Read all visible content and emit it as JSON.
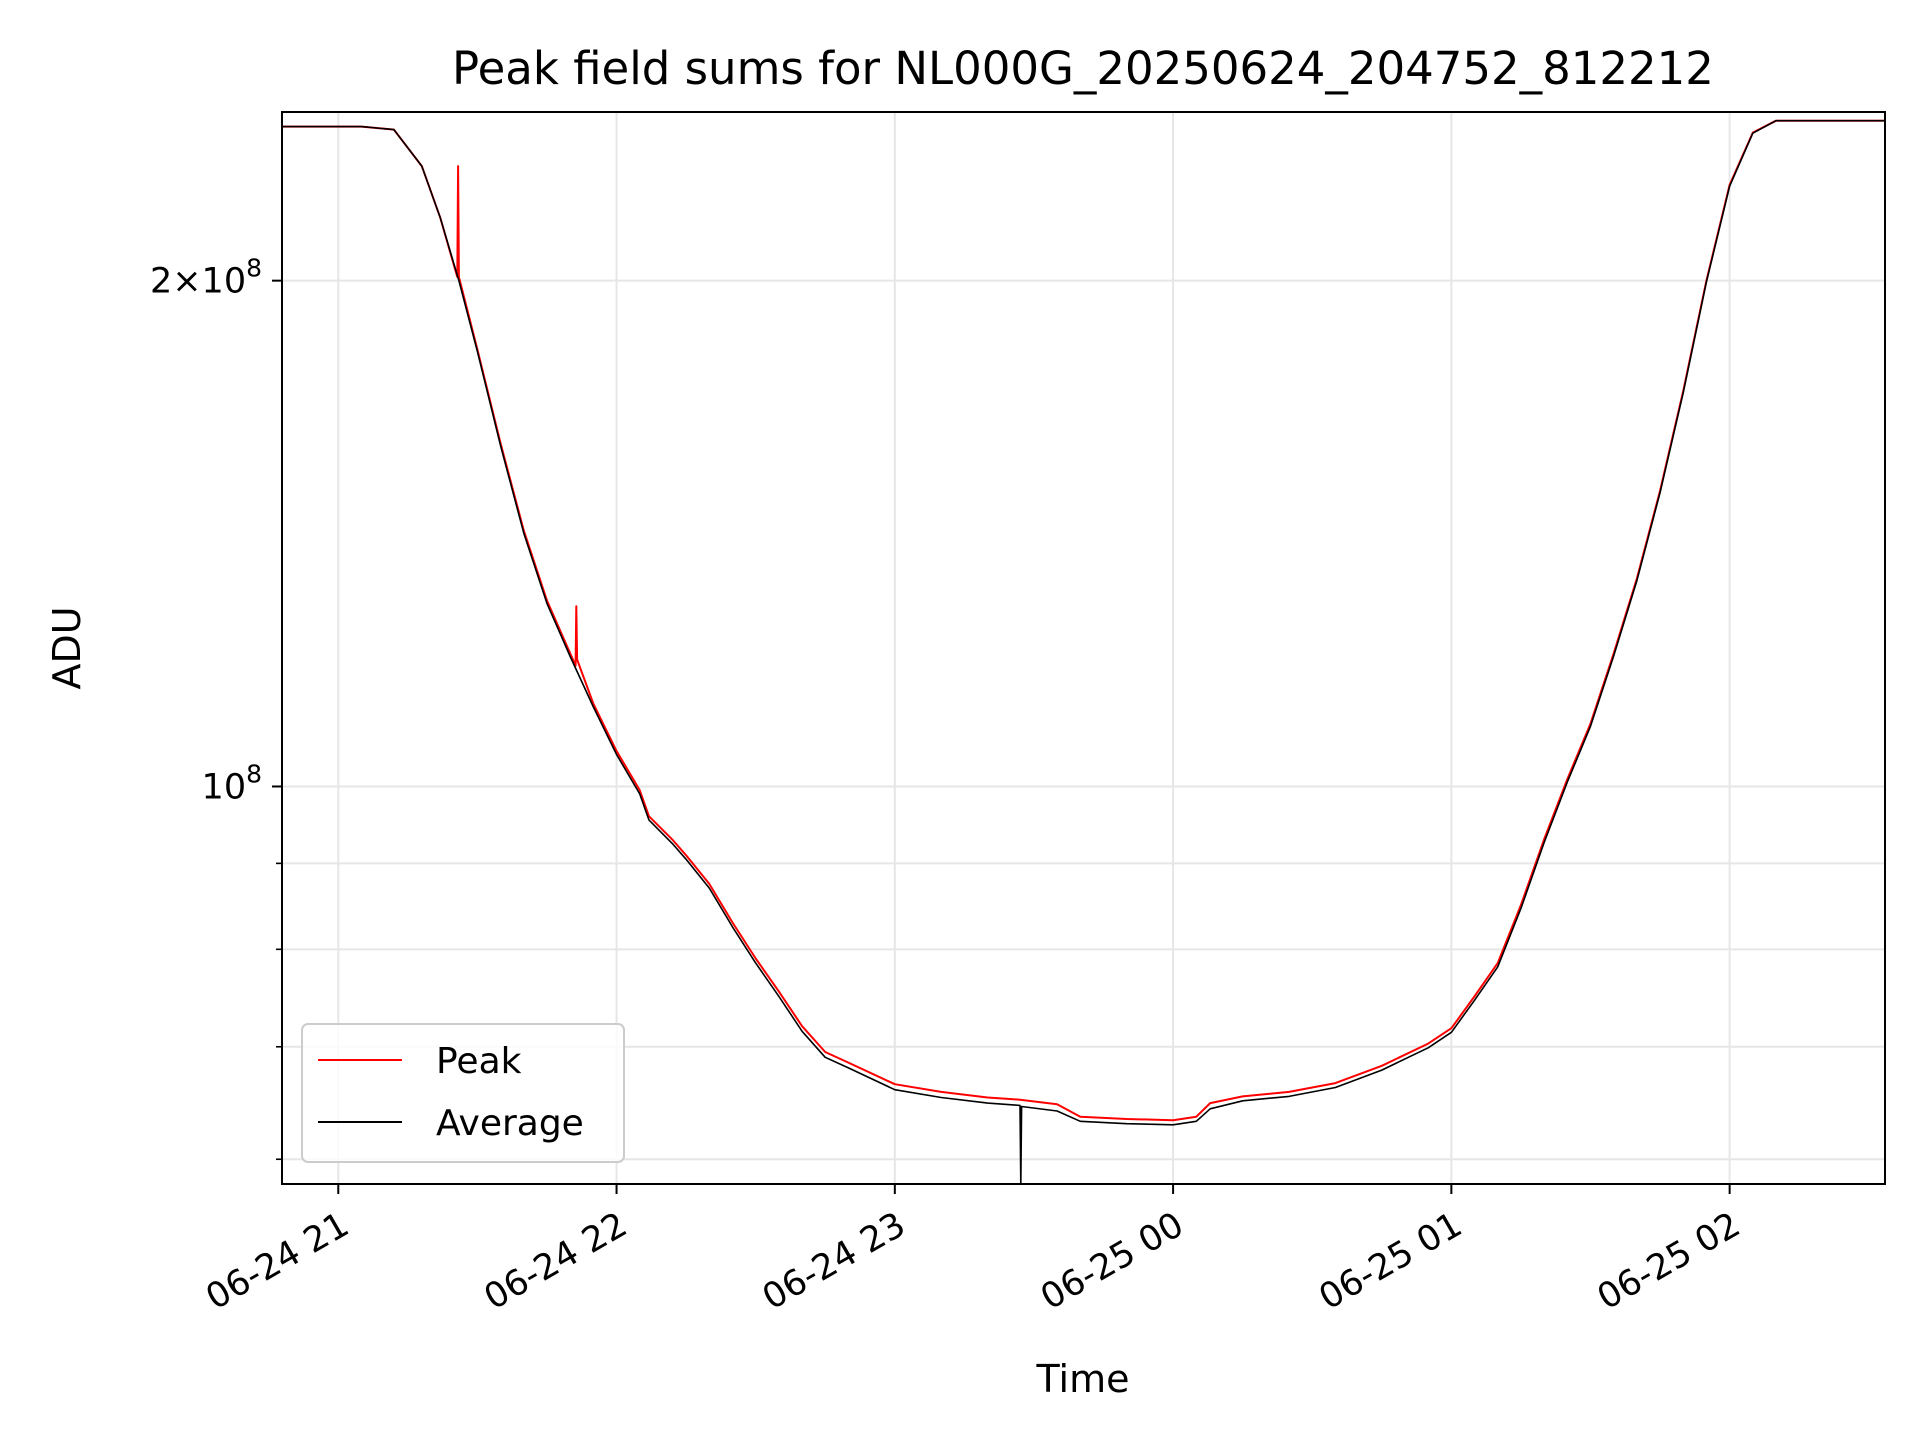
{
  "chart_data": {
    "type": "line",
    "title": "Peak field sums for NL000G_20250624_204752_812212",
    "xlabel": "Time",
    "ylabel": "ADU",
    "yscale": "log",
    "ylim": [
      58000000,
      252000000
    ],
    "xlim": [
      "2025-06-24 20:47:52",
      "2025-06-25 02:33:30"
    ],
    "x_ticks": [
      {
        "t": "2025-06-24 21:00",
        "label": "06-24 21"
      },
      {
        "t": "2025-06-24 22:00",
        "label": "06-24 22"
      },
      {
        "t": "2025-06-24 23:00",
        "label": "06-24 23"
      },
      {
        "t": "2025-06-25 00:00",
        "label": "06-25 00"
      },
      {
        "t": "2025-06-25 01:00",
        "label": "06-25 01"
      },
      {
        "t": "2025-06-25 02:00",
        "label": "06-25 02"
      }
    ],
    "y_ticks_major": [
      {
        "value": 100000000,
        "base": "10",
        "exp": "8",
        "coef": ""
      },
      {
        "value": 200000000,
        "base": "10",
        "exp": "8",
        "coef": "2"
      }
    ],
    "y_ticks_minor": [
      60000000,
      70000000,
      80000000,
      90000000
    ],
    "grid": true,
    "legend_position": "lower-left",
    "series": [
      {
        "name": "Peak",
        "color": "#ff0000",
        "points": [
          [
            "2025-06-24 20:47:52",
            247000000
          ],
          [
            "2025-06-24 21:05:00",
            247000000
          ],
          [
            "2025-06-24 21:12:00",
            246000000
          ],
          [
            "2025-06-24 21:18:00",
            234000000
          ],
          [
            "2025-06-24 21:22:00",
            218000000
          ],
          [
            "2025-06-24 21:25:40",
            201000000
          ],
          [
            "2025-06-24 21:25:50",
            234000000
          ],
          [
            "2025-06-24 21:26:00",
            201000000
          ],
          [
            "2025-06-24 21:30:00",
            182000000
          ],
          [
            "2025-06-24 21:35:00",
            160000000
          ],
          [
            "2025-06-24 21:40:00",
            142000000
          ],
          [
            "2025-06-24 21:45:00",
            129000000
          ],
          [
            "2025-06-24 21:50:00",
            120000000
          ],
          [
            "2025-06-24 21:51:10",
            118000000
          ],
          [
            "2025-06-24 21:51:20",
            128000000
          ],
          [
            "2025-06-24 21:51:30",
            119000000
          ],
          [
            "2025-06-24 21:55:00",
            112000000
          ],
          [
            "2025-06-24 22:00:00",
            105000000
          ],
          [
            "2025-06-24 22:05:00",
            99500000
          ],
          [
            "2025-06-24 22:07:00",
            96000000
          ],
          [
            "2025-06-24 22:12:00",
            93000000
          ],
          [
            "2025-06-24 22:15:00",
            91000000
          ],
          [
            "2025-06-24 22:20:00",
            87500000
          ],
          [
            "2025-06-24 22:25:00",
            83000000
          ],
          [
            "2025-06-24 22:30:00",
            79000000
          ],
          [
            "2025-06-24 22:35:00",
            75500000
          ],
          [
            "2025-06-24 22:40:00",
            72000000
          ],
          [
            "2025-06-24 22:45:00",
            69500000
          ],
          [
            "2025-06-24 22:50:00",
            68500000
          ],
          [
            "2025-06-24 23:00:00",
            66500000
          ],
          [
            "2025-06-24 23:10:00",
            65800000
          ],
          [
            "2025-06-24 23:20:00",
            65300000
          ],
          [
            "2025-06-24 23:27:00",
            65100000
          ],
          [
            "2025-06-24 23:35:00",
            64700000
          ],
          [
            "2025-06-24 23:40:00",
            63600000
          ],
          [
            "2025-06-24 23:50:00",
            63400000
          ],
          [
            "2025-06-25 00:00:00",
            63300000
          ],
          [
            "2025-06-25 00:05:00",
            63600000
          ],
          [
            "2025-06-25 00:08:00",
            64800000
          ],
          [
            "2025-06-25 00:15:00",
            65400000
          ],
          [
            "2025-06-25 00:25:00",
            65800000
          ],
          [
            "2025-06-25 00:35:00",
            66600000
          ],
          [
            "2025-06-25 00:45:00",
            68200000
          ],
          [
            "2025-06-25 00:55:00",
            70300000
          ],
          [
            "2025-06-25 01:00:00",
            71800000
          ],
          [
            "2025-06-25 01:05:00",
            75000000
          ],
          [
            "2025-06-25 01:10:00",
            78500000
          ],
          [
            "2025-06-25 01:15:00",
            85000000
          ],
          [
            "2025-06-25 01:20:00",
            93000000
          ],
          [
            "2025-06-25 01:25:00",
            101000000
          ],
          [
            "2025-06-25 01:30:00",
            109000000
          ],
          [
            "2025-06-25 01:35:00",
            120000000
          ],
          [
            "2025-06-25 01:40:00",
            133000000
          ],
          [
            "2025-06-25 01:45:00",
            150000000
          ],
          [
            "2025-06-25 01:50:00",
            172000000
          ],
          [
            "2025-06-25 01:55:00",
            200000000
          ],
          [
            "2025-06-25 02:00:00",
            228000000
          ],
          [
            "2025-06-25 02:05:00",
            245000000
          ],
          [
            "2025-06-25 02:10:00",
            249000000
          ],
          [
            "2025-06-25 02:33:30",
            249000000
          ]
        ]
      },
      {
        "name": "Average",
        "color": "#000000",
        "points": [
          [
            "2025-06-24 20:47:52",
            247000000
          ],
          [
            "2025-06-24 21:05:00",
            247000000
          ],
          [
            "2025-06-24 21:12:00",
            246000000
          ],
          [
            "2025-06-24 21:18:00",
            234000000
          ],
          [
            "2025-06-24 21:22:00",
            218000000
          ],
          [
            "2025-06-24 21:26:00",
            200000000
          ],
          [
            "2025-06-24 21:30:00",
            181500000
          ],
          [
            "2025-06-24 21:35:00",
            159500000
          ],
          [
            "2025-06-24 21:40:00",
            141500000
          ],
          [
            "2025-06-24 21:45:00",
            128500000
          ],
          [
            "2025-06-24 21:50:00",
            119500000
          ],
          [
            "2025-06-24 21:55:00",
            111500000
          ],
          [
            "2025-06-24 22:00:00",
            104500000
          ],
          [
            "2025-06-24 22:05:00",
            99000000
          ],
          [
            "2025-06-24 22:07:00",
            95500000
          ],
          [
            "2025-06-24 22:12:00",
            92500000
          ],
          [
            "2025-06-24 22:15:00",
            90500000
          ],
          [
            "2025-06-24 22:20:00",
            87000000
          ],
          [
            "2025-06-24 22:25:00",
            82500000
          ],
          [
            "2025-06-24 22:30:00",
            78500000
          ],
          [
            "2025-06-24 22:35:00",
            75000000
          ],
          [
            "2025-06-24 22:40:00",
            71500000
          ],
          [
            "2025-06-24 22:45:00",
            69000000
          ],
          [
            "2025-06-24 22:50:00",
            68000000
          ],
          [
            "2025-06-24 23:00:00",
            66000000
          ],
          [
            "2025-06-24 23:10:00",
            65300000
          ],
          [
            "2025-06-24 23:20:00",
            64800000
          ],
          [
            "2025-06-24 23:27:00",
            64600000
          ],
          [
            "2025-06-24 23:27:10",
            58000000
          ],
          [
            "2025-06-24 23:27:20",
            64500000
          ],
          [
            "2025-06-24 23:35:00",
            64100000
          ],
          [
            "2025-06-24 23:40:00",
            63200000
          ],
          [
            "2025-06-24 23:50:00",
            63000000
          ],
          [
            "2025-06-25 00:00:00",
            62900000
          ],
          [
            "2025-06-25 00:05:00",
            63200000
          ],
          [
            "2025-06-25 00:08:00",
            64300000
          ],
          [
            "2025-06-25 00:15:00",
            65000000
          ],
          [
            "2025-06-25 00:25:00",
            65400000
          ],
          [
            "2025-06-25 00:35:00",
            66200000
          ],
          [
            "2025-06-25 00:45:00",
            67800000
          ],
          [
            "2025-06-25 00:55:00",
            69900000
          ],
          [
            "2025-06-25 01:00:00",
            71400000
          ],
          [
            "2025-06-25 01:05:00",
            74600000
          ],
          [
            "2025-06-25 01:10:00",
            78100000
          ],
          [
            "2025-06-25 01:15:00",
            84600000
          ],
          [
            "2025-06-25 01:20:00",
            92600000
          ],
          [
            "2025-06-25 01:25:00",
            100600000
          ],
          [
            "2025-06-25 01:30:00",
            108600000
          ],
          [
            "2025-06-25 01:35:00",
            119600000
          ],
          [
            "2025-06-25 01:40:00",
            132600000
          ],
          [
            "2025-06-25 01:45:00",
            149600000
          ],
          [
            "2025-06-25 01:50:00",
            171600000
          ],
          [
            "2025-06-25 01:55:00",
            199600000
          ],
          [
            "2025-06-25 02:00:00",
            227600000
          ],
          [
            "2025-06-25 02:05:00",
            244800000
          ],
          [
            "2025-06-25 02:10:00",
            249000000
          ],
          [
            "2025-06-25 02:33:30",
            249000000
          ]
        ]
      }
    ]
  }
}
